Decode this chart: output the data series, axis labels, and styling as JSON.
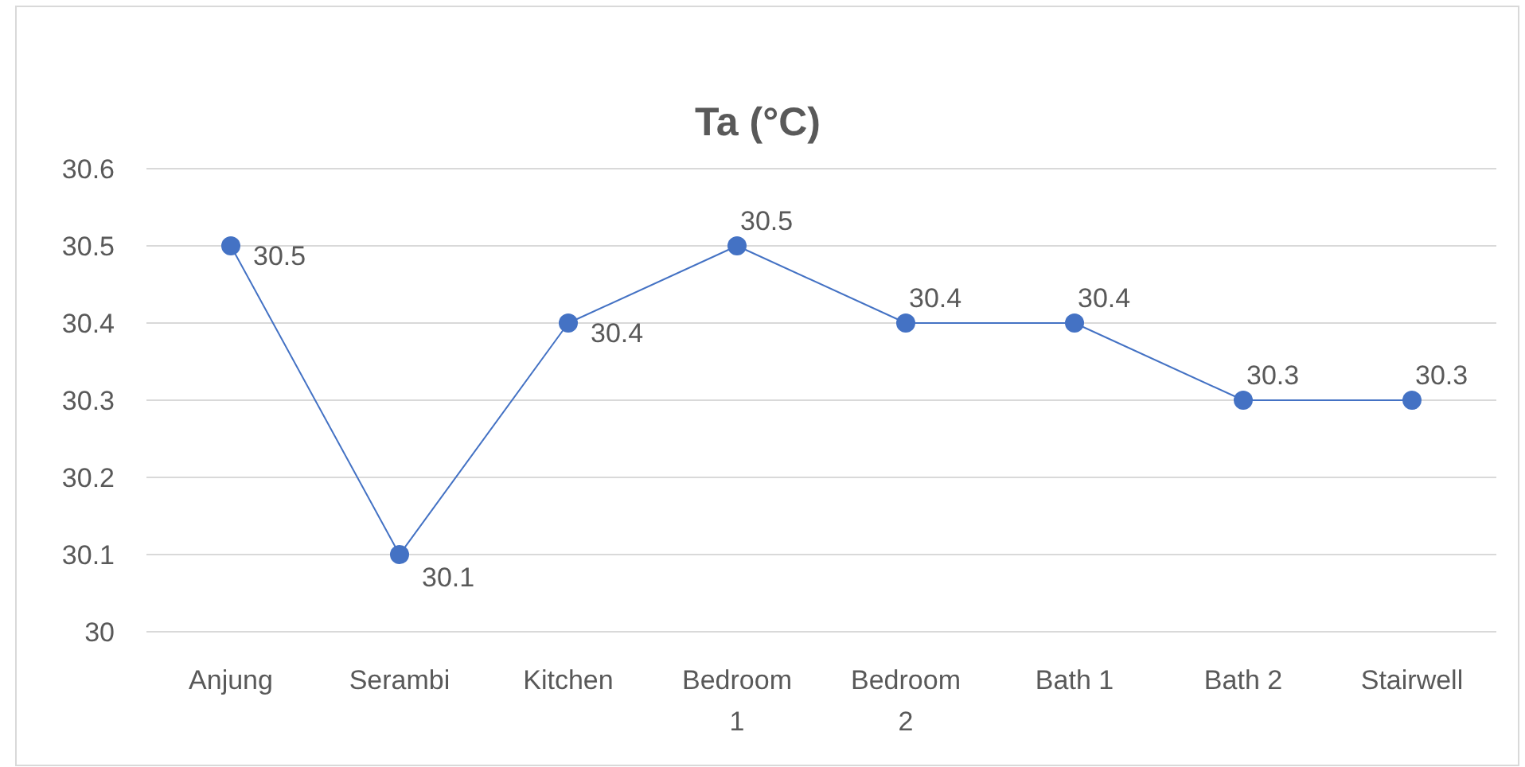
{
  "chart_data": {
    "type": "line",
    "title": "Ta (°C)",
    "categories": [
      "Anjung",
      "Serambi",
      "Kitchen",
      "Bedroom 1",
      "Bedroom 2",
      "Bath 1",
      "Bath 2",
      "Stairwell"
    ],
    "series": [
      {
        "color": "#4472c4",
        "values": [
          30.5,
          30.1,
          30.4,
          30.5,
          30.4,
          30.4,
          30.3,
          30.3
        ]
      }
    ],
    "ylim": [
      30,
      30.6
    ],
    "yticks": [
      30,
      30.1,
      30.2,
      30.3,
      30.4,
      30.5,
      30.6
    ],
    "grid": "y",
    "marker": "circle",
    "line_style": "solid",
    "data_labels": true
  }
}
